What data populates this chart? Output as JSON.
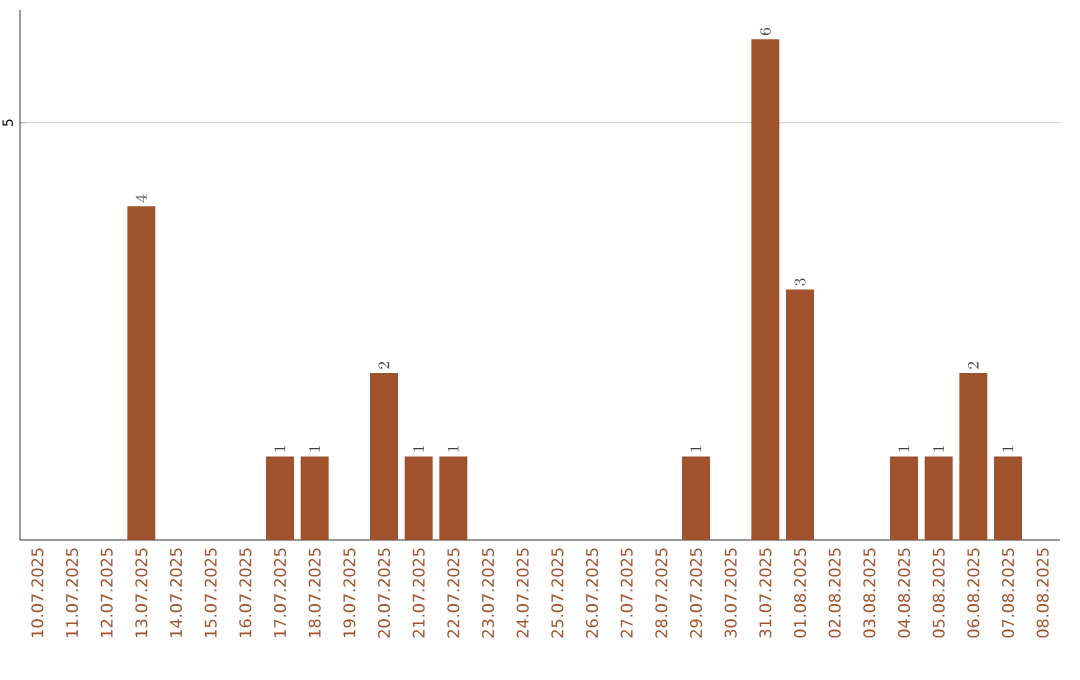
{
  "chart_data": {
    "type": "bar",
    "categories": [
      "10.07.2025",
      "11.07.2025",
      "12.07.2025",
      "13.07.2025",
      "14.07.2025",
      "15.07.2025",
      "16.07.2025",
      "17.07.2025",
      "18.07.2025",
      "19.07.2025",
      "20.07.2025",
      "21.07.2025",
      "22.07.2025",
      "23.07.2025",
      "24.07.2025",
      "25.07.2025",
      "26.07.2025",
      "27.07.2025",
      "28.07.2025",
      "29.07.2025",
      "30.07.2025",
      "31.07.2025",
      "01.08.2025",
      "02.08.2025",
      "03.08.2025",
      "04.08.2025",
      "05.08.2025",
      "06.08.2025",
      "07.08.2025",
      "08.08.2025"
    ],
    "values": [
      null,
      null,
      null,
      4,
      null,
      null,
      null,
      1,
      1,
      null,
      2,
      1,
      1,
      null,
      null,
      null,
      null,
      null,
      null,
      1,
      null,
      6,
      3,
      null,
      null,
      1,
      1,
      2,
      1,
      null
    ],
    "color": "#a0522d",
    "ylim": [
      0,
      6.35
    ],
    "yticks": [
      5
    ],
    "grid": "y",
    "data_labels": true
  }
}
